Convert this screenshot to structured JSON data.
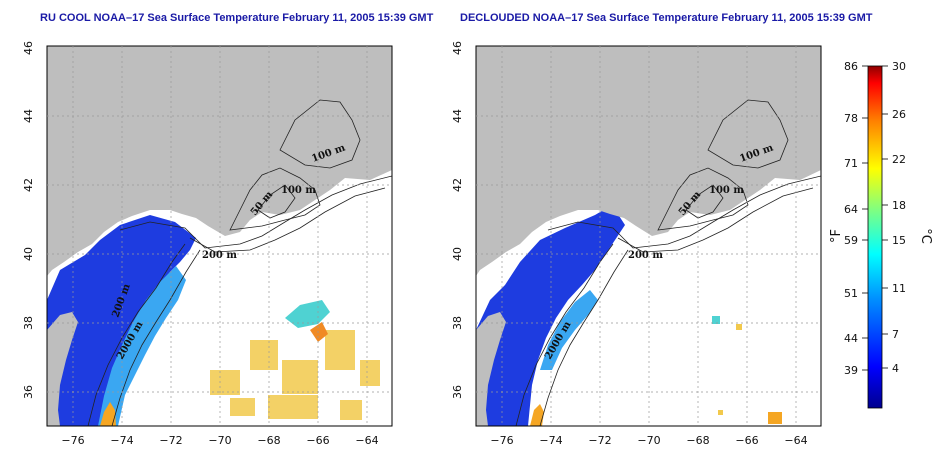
{
  "titles": {
    "left": "RU COOL NOAA–17 Sea Surface Temperature February 11, 2005 15:39 GMT",
    "right": "DECLOUDED NOAA–17 Sea Surface Temperature February 11, 2005 15:39 GMT"
  },
  "axes": {
    "x_ticks": [
      "−76",
      "−74",
      "−72",
      "−70",
      "−68",
      "−66",
      "−64"
    ],
    "y_ticks": [
      "36",
      "38",
      "40",
      "42",
      "44",
      "46"
    ]
  },
  "contour_labels": {
    "left": [
      "50 m",
      "100 m",
      "100 m",
      "200 m",
      "200 m",
      "2000 m"
    ],
    "right": [
      "50 m",
      "100 m",
      "100 m",
      "200 m",
      "2000 m"
    ]
  },
  "colorbar": {
    "fahrenheit_label": "°F",
    "celsius_label": "°C",
    "fahrenheit_ticks": [
      "86",
      "78",
      "71",
      "64",
      "59",
      "51",
      "44",
      "39"
    ],
    "celsius_ticks": [
      "30",
      "26",
      "22",
      "18",
      "15",
      "11",
      "7",
      "4"
    ]
  },
  "colors": {
    "land": "#bebebe",
    "ocean": "#ffffff",
    "cold": "#1e3ce0",
    "cool": "#33b5ff",
    "warm": "#f0c83c",
    "hot": "#ff7a1a",
    "title": "#1a1aa6"
  }
}
